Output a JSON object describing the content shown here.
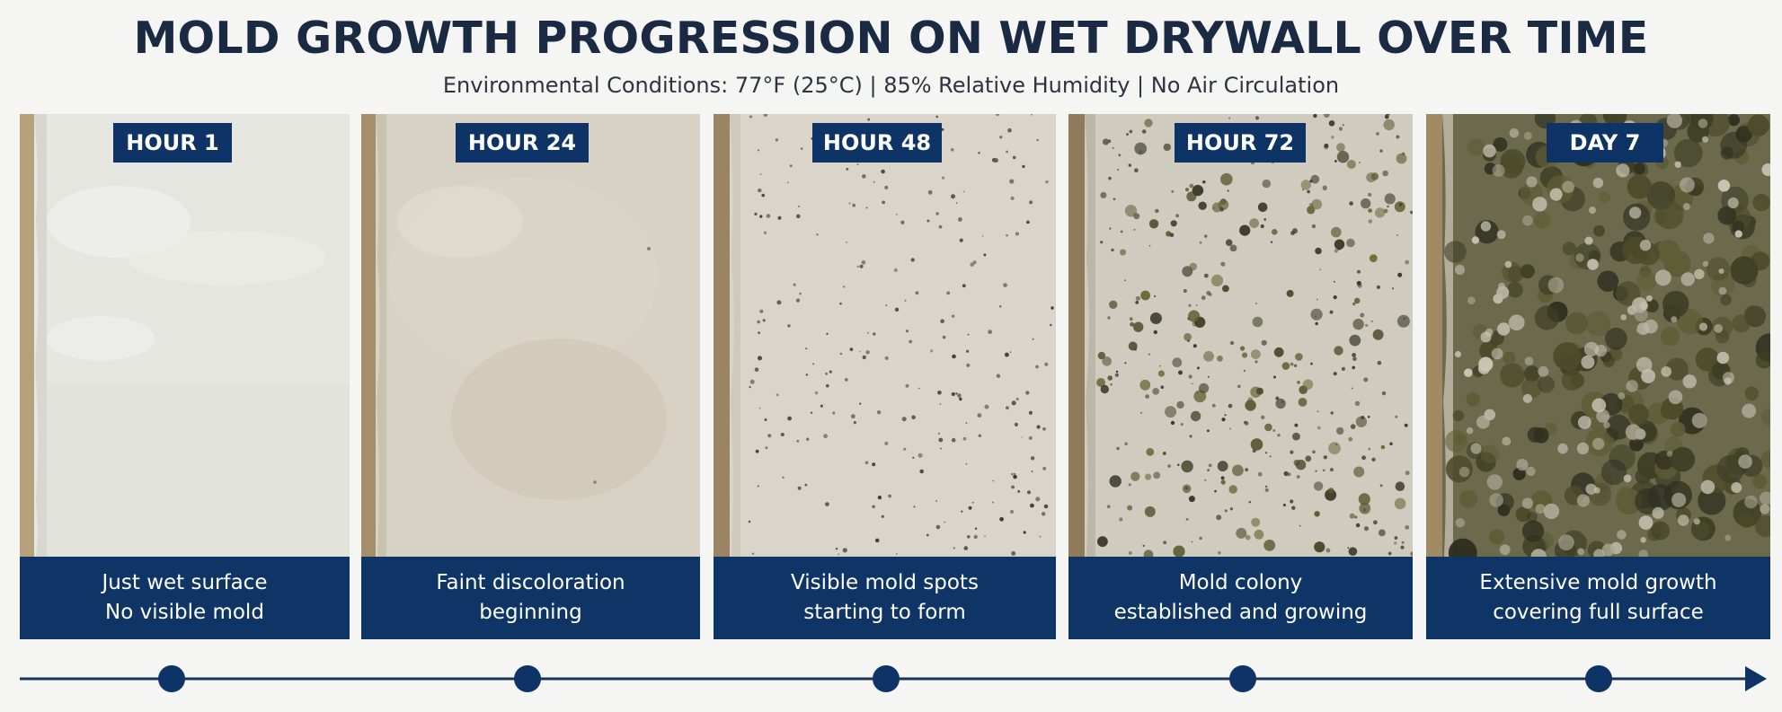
{
  "header": {
    "title": "MOLD GROWTH PROGRESSION ON WET DRYWALL OVER TIME",
    "subtitle": "Environmental Conditions: 77°F (25°C) | 85% Relative Humidity | No Air Circulation"
  },
  "panels": [
    {
      "badge": "HOUR 1",
      "caption_line1": "Just wet surface",
      "caption_line2": "No visible mold"
    },
    {
      "badge": "HOUR 24",
      "caption_line1": "Faint discoloration",
      "caption_line2": "beginning"
    },
    {
      "badge": "HOUR 48",
      "caption_line1": "Visible mold spots",
      "caption_line2": "starting to form"
    },
    {
      "badge": "HOUR 72",
      "caption_line1": "Mold colony",
      "caption_line2": "established and growing"
    },
    {
      "badge": "DAY 7",
      "caption_line1": "Extensive mold growth",
      "caption_line2": "covering full surface"
    }
  ],
  "colors": {
    "navy": "#0e3366",
    "title_text": "#1a2a42",
    "background": "#f5f5f4"
  }
}
